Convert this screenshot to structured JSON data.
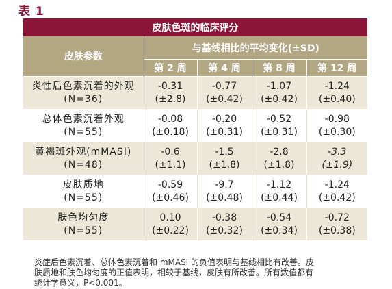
{
  "label": "表 1",
  "title": "皮肤色斑的临床评分",
  "header": {
    "param": "皮肤参数",
    "change": "与基线相比的平均变化(±SD)",
    "weeks": [
      "第 2 周",
      "第 4 周",
      "第 8 周",
      "第 12 周"
    ]
  },
  "rows": [
    {
      "name": "炎性后色素沉着的外观",
      "n": "(N=36)",
      "values": [
        {
          "mean": "-0.31",
          "sd": "(±2.8)"
        },
        {
          "mean": "-0.77",
          "sd": "(±0.42)"
        },
        {
          "mean": "-1.07",
          "sd": "(±0.42)"
        },
        {
          "mean": "-1.24",
          "sd": "(±0.40)"
        }
      ]
    },
    {
      "name": "总体色素沉着外观",
      "n": "(N=55)",
      "values": [
        {
          "mean": "-0.08",
          "sd": "(±0.18)"
        },
        {
          "mean": "-0.20",
          "sd": "(±0.31)"
        },
        {
          "mean": "-0.52",
          "sd": "(±0.31)"
        },
        {
          "mean": "-0.98",
          "sd": "(±0.30)"
        }
      ]
    },
    {
      "name": "黄褐斑外观(mMASI)",
      "n": "(N=48)",
      "values": [
        {
          "mean": "-0.6",
          "sd": "(±1.1)"
        },
        {
          "mean": "-1.5",
          "sd": "(±1.8)"
        },
        {
          "mean": "-2.8",
          "sd": "(±1.8)"
        },
        {
          "mean": "-3.3",
          "sd": "(±1.9)"
        }
      ]
    },
    {
      "name": "皮肤质地",
      "n": "(N=55)",
      "values": [
        {
          "mean": "-0.59",
          "sd": "(±0.46)"
        },
        {
          "mean": "-9.7",
          "sd": "(±0.48)"
        },
        {
          "mean": "-1.12",
          "sd": "(±0.44)"
        },
        {
          "mean": "-1.24",
          "sd": "(±0.42)"
        }
      ]
    },
    {
      "name": "肤色均匀度",
      "n": "(N=55)",
      "values": [
        {
          "mean": "0.10",
          "sd": "(±0.22)"
        },
        {
          "mean": "-0.38",
          "sd": "(±0.32)"
        },
        {
          "mean": "-0.54",
          "sd": "(±0.34)"
        },
        {
          "mean": "-0.72",
          "sd": "(±0.38)"
        }
      ]
    }
  ],
  "footnote": [
    "炎症后色素沉着、总体色素沉着和 mMASI 的负值表明与基线相比有改善。皮",
    "肤质地和肤色均匀度的正值表明，相较于基线，皮肤有所改善。所有数值都有",
    "统计学意义，P<0.001。"
  ]
}
